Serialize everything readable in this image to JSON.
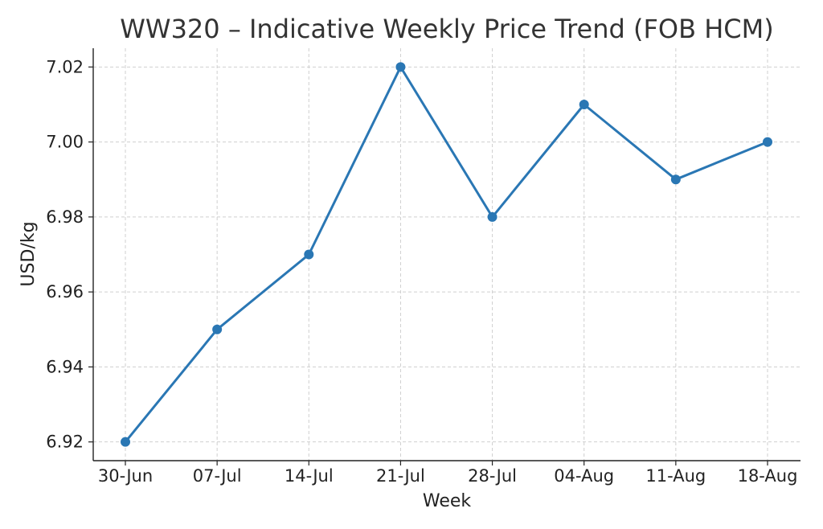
{
  "chart_data": {
    "type": "line",
    "title": "WW320 – Indicative Weekly Price Trend (FOB HCM)",
    "xlabel": "Week",
    "ylabel": "USD/kg",
    "categories": [
      "30-Jun",
      "07-Jul",
      "14-Jul",
      "21-Jul",
      "28-Jul",
      "04-Aug",
      "11-Aug",
      "18-Aug"
    ],
    "series": [
      {
        "values": [
          6.92,
          6.95,
          6.97,
          7.02,
          6.98,
          7.01,
          6.99,
          7.0
        ],
        "color": "#2a77b4"
      }
    ],
    "yticks": [
      "6.92",
      "6.94",
      "6.96",
      "6.98",
      "7.00",
      "7.02"
    ],
    "ylim": [
      6.915,
      7.025
    ],
    "grid": true,
    "legend": "none"
  }
}
